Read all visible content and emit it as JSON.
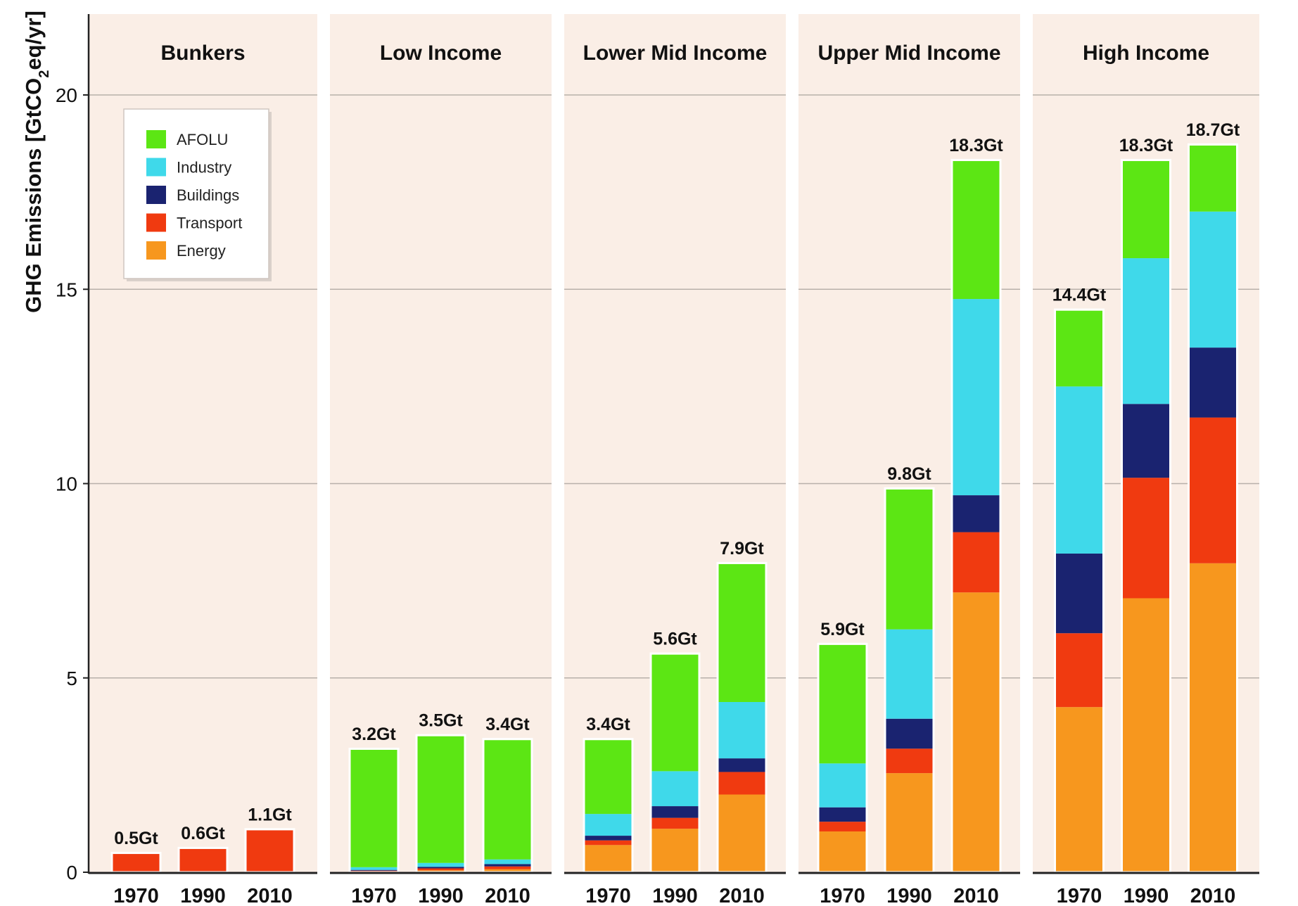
{
  "chart_data": {
    "type": "bar",
    "stacked": true,
    "ylabel_parts": [
      "GHG Emissions [GtCO",
      "2",
      "eq/yr]"
    ],
    "ylim": [
      0,
      22
    ],
    "yticks": [
      0,
      5,
      10,
      15,
      20
    ],
    "grid": true,
    "legend_placement": "top-left",
    "colors": {
      "panel_bg": "#faeee6",
      "grid": "#b8b0aa",
      "axis": "#222222"
    },
    "series": [
      {
        "name": "Energy",
        "color": "#f7971e"
      },
      {
        "name": "Transport",
        "color": "#f03a10"
      },
      {
        "name": "Buildings",
        "color": "#1a2370"
      },
      {
        "name": "Industry",
        "color": "#3fd9ea"
      },
      {
        "name": "AFOLU",
        "color": "#5ce614"
      }
    ],
    "legend_order": [
      "AFOLU",
      "Industry",
      "Buildings",
      "Transport",
      "Energy"
    ],
    "panels": [
      {
        "title": "Bunkers",
        "categories": [
          "1970",
          "1990",
          "2010"
        ],
        "totals": [
          "0.5Gt",
          "0.6Gt",
          "1.1Gt"
        ],
        "values": {
          "Energy": [
            0,
            0,
            0
          ],
          "Transport": [
            0.47,
            0.6,
            1.08
          ],
          "Buildings": [
            0,
            0,
            0
          ],
          "Industry": [
            0,
            0,
            0
          ],
          "AFOLU": [
            0,
            0,
            0
          ]
        }
      },
      {
        "title": "Low Income",
        "categories": [
          "1970",
          "1990",
          "2010"
        ],
        "totals": [
          "3.2Gt",
          "3.5Gt",
          "3.4Gt"
        ],
        "values": {
          "Energy": [
            0.02,
            0.05,
            0.08
          ],
          "Transport": [
            0.02,
            0.05,
            0.07
          ],
          "Buildings": [
            0.02,
            0.04,
            0.06
          ],
          "Industry": [
            0.07,
            0.1,
            0.12
          ],
          "AFOLU": [
            3.02,
            3.26,
            3.07
          ]
        }
      },
      {
        "title": "Lower Mid Income",
        "categories": [
          "1970",
          "1990",
          "2010"
        ],
        "totals": [
          "3.4Gt",
          "5.6Gt",
          "7.9Gt"
        ],
        "values": {
          "Energy": [
            0.7,
            1.12,
            2.0
          ],
          "Transport": [
            0.12,
            0.28,
            0.58
          ],
          "Buildings": [
            0.12,
            0.3,
            0.35
          ],
          "Industry": [
            0.56,
            0.9,
            1.45
          ],
          "AFOLU": [
            1.9,
            3.0,
            3.55
          ]
        }
      },
      {
        "title": "Upper Mid Income",
        "categories": [
          "1970",
          "1990",
          "2010"
        ],
        "totals": [
          "5.9Gt",
          "9.8Gt",
          "18.3Gt"
        ],
        "values": {
          "Energy": [
            1.05,
            2.55,
            7.2
          ],
          "Transport": [
            0.25,
            0.63,
            1.55
          ],
          "Buildings": [
            0.37,
            0.77,
            0.95
          ],
          "Industry": [
            1.13,
            2.3,
            5.05
          ],
          "AFOLU": [
            3.05,
            3.6,
            3.55
          ]
        }
      },
      {
        "title": "High Income",
        "categories": [
          "1970",
          "1990",
          "2010"
        ],
        "totals": [
          "14.4Gt",
          "18.3Gt",
          "18.7Gt"
        ],
        "values": {
          "Energy": [
            4.25,
            7.05,
            7.95
          ],
          "Transport": [
            1.9,
            3.1,
            3.75
          ],
          "Buildings": [
            2.05,
            1.9,
            1.8
          ],
          "Industry": [
            4.3,
            3.75,
            3.5
          ],
          "AFOLU": [
            1.95,
            2.5,
            1.7
          ]
        }
      }
    ]
  }
}
